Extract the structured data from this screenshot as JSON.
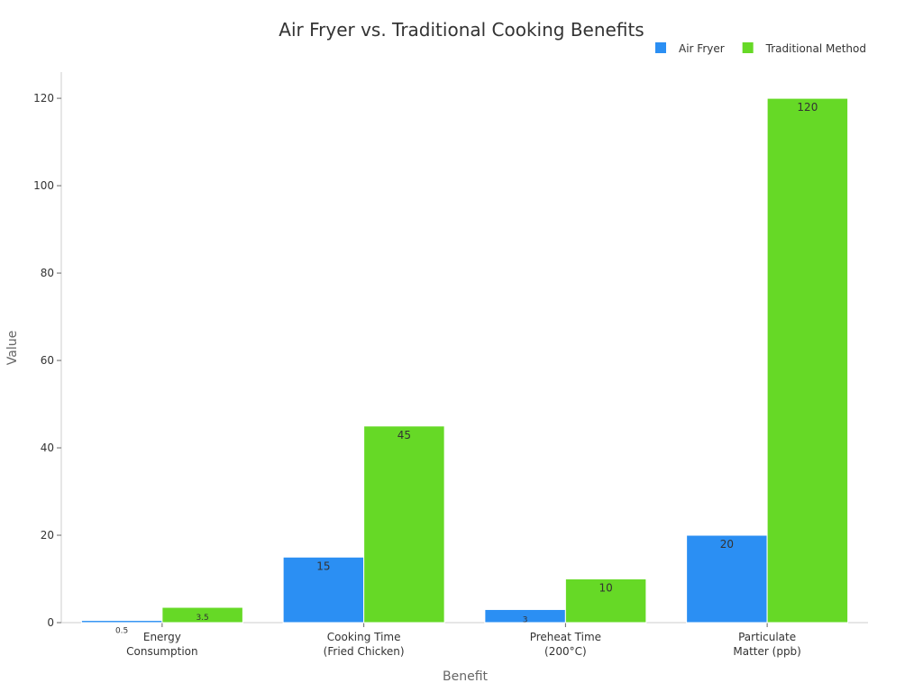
{
  "chart_data": {
    "type": "bar",
    "title": "Air Fryer vs. Traditional Cooking Benefits",
    "x_label": "Benefit",
    "y_label": "Value",
    "categories": [
      "Energy\nConsumption",
      "Cooking Time\n(Fried Chicken)",
      "Preheat Time\n(200°C)",
      "Particulate\nMatter (ppb)"
    ],
    "series": [
      {
        "name": "Air Fryer",
        "color": "#2b8ff3",
        "values": [
          0.5,
          15,
          3,
          20
        ]
      },
      {
        "name": "Traditional Method",
        "color": "#66d926",
        "values": [
          3.5,
          45,
          10,
          120
        ]
      }
    ],
    "ylim": [
      0,
      126
    ],
    "yticks": [
      0,
      20,
      40,
      60,
      80,
      100,
      120
    ],
    "legend": "top-right"
  }
}
